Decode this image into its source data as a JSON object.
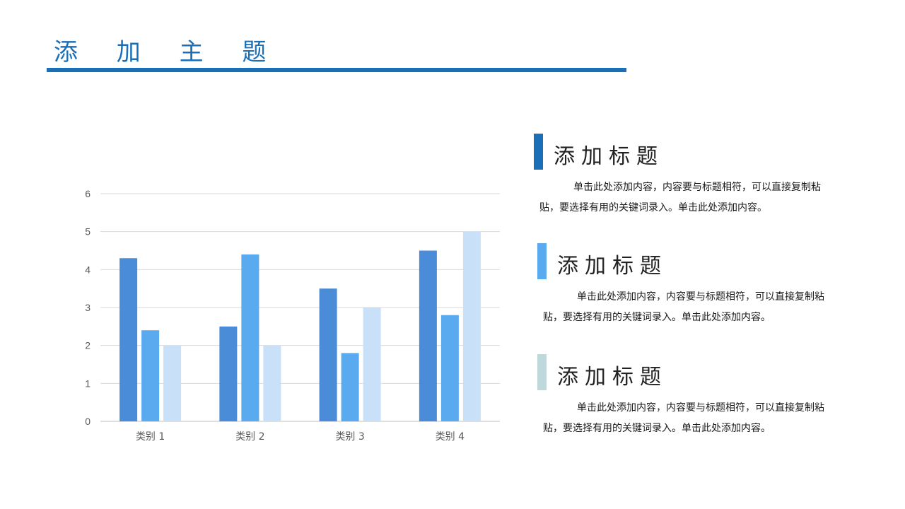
{
  "header": {
    "title": "添 加 主 题",
    "accent_color": "#1a6fb7"
  },
  "chart_data": {
    "type": "bar",
    "categories": [
      "类别 1",
      "类别 2",
      "类别 3",
      "类别 4"
    ],
    "series": [
      {
        "values": [
          4.3,
          2.5,
          3.5,
          4.5
        ],
        "color": "#4a8cd8"
      },
      {
        "values": [
          2.4,
          4.4,
          1.8,
          2.8
        ],
        "color": "#5aaaf0"
      },
      {
        "values": [
          2.0,
          2.0,
          3.0,
          5.0
        ],
        "color": "#c9e1f8"
      }
    ],
    "ylim": [
      0,
      6
    ],
    "yticks": [
      0,
      1,
      2,
      3,
      4,
      5,
      6
    ],
    "grid": true,
    "title": "",
    "xlabel": "",
    "ylabel": ""
  },
  "sections": [
    {
      "title": "添加标题",
      "body": "单击此处添加内容，内容要与标题相符，可以直接复制粘贴，要选择有用的关键词录入。单击此处添加内容。",
      "bar_color": "#1a6fb7"
    },
    {
      "title": "添加标题",
      "body": "单击此处添加内容，内容要与标题相符，可以直接复制粘贴，要选择有用的关键词录入。单击此处添加内容。",
      "bar_color": "#5aaaf0"
    },
    {
      "title": "添加标题",
      "body": "单击此处添加内容，内容要与标题相符，可以直接复制粘贴，要选择有用的关键词录入。单击此处添加内容。",
      "bar_color": "#bfd8dc"
    }
  ]
}
